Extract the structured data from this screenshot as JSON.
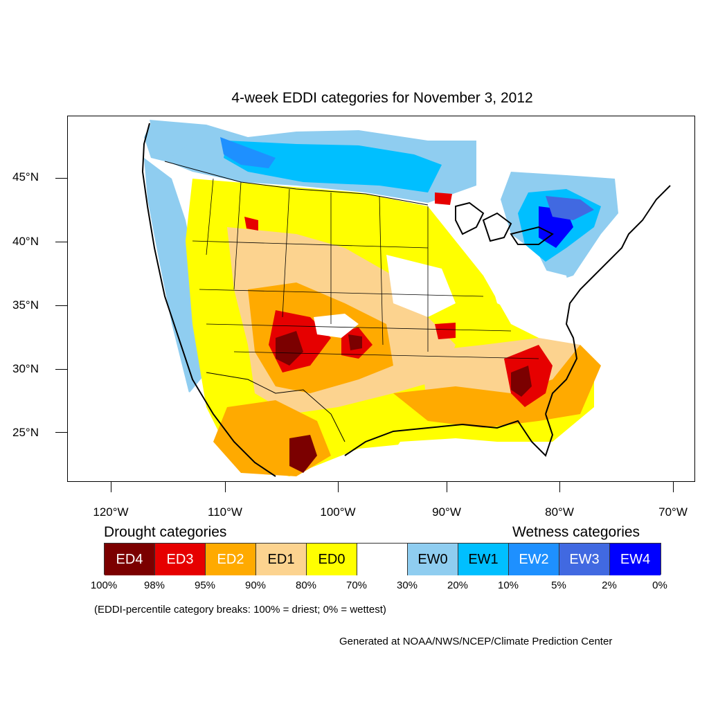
{
  "title": "4-week EDDI categories for November 3, 2012",
  "lat_labels": [
    "45°N",
    "40°N",
    "35°N",
    "30°N",
    "25°N"
  ],
  "lon_labels": [
    "120°W",
    "110°W",
    "100°W",
    "90°W",
    "80°W",
    "70°W"
  ],
  "legend": {
    "drought_heading": "Drought categories",
    "wetness_heading": "Wetness categories",
    "categories": [
      {
        "label": "ED4",
        "color": "#7b0000",
        "text_color": "#ffffff"
      },
      {
        "label": "ED3",
        "color": "#e60000",
        "text_color": "#ffffff"
      },
      {
        "label": "ED2",
        "color": "#ffaa00",
        "text_color": "#ffffff"
      },
      {
        "label": "ED1",
        "color": "#fcd38f",
        "text_color": "#000000"
      },
      {
        "label": "ED0",
        "color": "#ffff00",
        "text_color": "#000000"
      },
      {
        "label": "",
        "color": "#ffffff",
        "text_color": "#000000"
      },
      {
        "label": "EW0",
        "color": "#8fcdf0",
        "text_color": "#000000"
      },
      {
        "label": "EW1",
        "color": "#00bfff",
        "text_color": "#000000"
      },
      {
        "label": "EW2",
        "color": "#1e90ff",
        "text_color": "#ffffff"
      },
      {
        "label": "EW3",
        "color": "#4169e1",
        "text_color": "#ffffff"
      },
      {
        "label": "EW4",
        "color": "#0000ff",
        "text_color": "#ffffff"
      }
    ],
    "breaks": [
      "100%",
      "98%",
      "95%",
      "90%",
      "80%",
      "70%",
      "30%",
      "20%",
      "10%",
      "5%",
      "2%",
      "0%"
    ]
  },
  "note": "(EDDI-percentile category breaks: 100% = driest; 0% = wettest)",
  "credit": "Generated at NOAA/NWS/NCEP/Climate Prediction Center"
}
